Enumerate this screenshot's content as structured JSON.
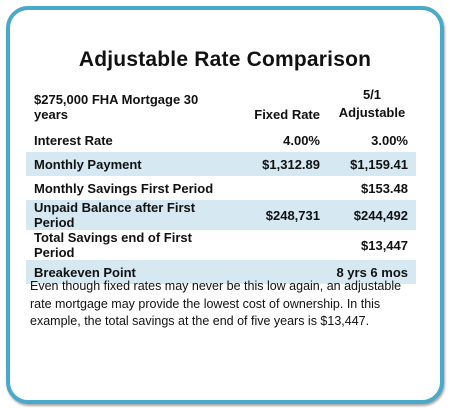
{
  "title": "Adjustable Rate Comparison",
  "table": {
    "header": {
      "label": "$275,000 FHA Mortgage 30 years",
      "col1": "Fixed Rate",
      "col2_line1": "5/1",
      "col2_line2": "Adjustable"
    },
    "rows": [
      {
        "label": "Interest Rate",
        "fixed": "4.00%",
        "adjustable": "3.00%",
        "shaded": false
      },
      {
        "label": "Monthly Payment",
        "fixed": "$1,312.89",
        "adjustable": "$1,159.41",
        "shaded": true
      },
      {
        "label": "Monthly Savings First Period",
        "fixed": "",
        "adjustable": "$153.48",
        "shaded": false
      },
      {
        "label": "Unpaid Balance after First Period",
        "fixed": "$248,731",
        "adjustable": "$244,492",
        "shaded": true
      },
      {
        "label": "Total Savings end of First Period",
        "fixed": "",
        "adjustable": "$13,447",
        "shaded": false
      },
      {
        "label": "Breakeven Point",
        "fixed": "",
        "adjustable": "8 yrs 6 mos",
        "shaded": true
      }
    ]
  },
  "paragraph": "Even though fixed rates may never be this low again, an adjustable rate mortgage may provide the lowest cost of ownership.  In this example, the total savings at the end of five years is $13,447.",
  "colors": {
    "border": "#4aa8c9",
    "row_shade": "#d6e9f3"
  }
}
